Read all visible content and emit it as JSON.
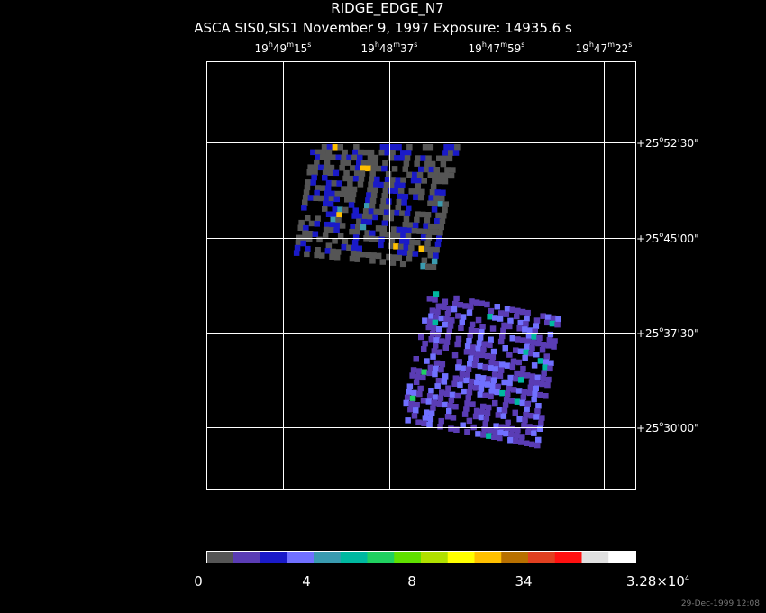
{
  "title": "RIDGE_EDGE_N7",
  "subtitle": "ASCA SIS0,SIS1 November 9, 1997 Exposure: 14935.6 s",
  "ra_labels": [
    [
      "19",
      "h",
      "49",
      "m",
      "15",
      "s"
    ],
    [
      "19",
      "h",
      "48",
      "m",
      "37",
      "s"
    ],
    [
      "19",
      "h",
      "47",
      "m",
      "59",
      "s"
    ],
    [
      "19",
      "h",
      "47",
      "m",
      "22",
      "s"
    ]
  ],
  "dec_labels": [
    [
      "+25",
      "o",
      "52'30\""
    ],
    [
      "+25",
      "o",
      "45'00\""
    ],
    [
      "+25",
      "o",
      "37'30\""
    ],
    [
      "+25",
      "o",
      "30'00\""
    ]
  ],
  "colorbar": {
    "colors": [
      "#555555",
      "#5a3cb4",
      "#1a1ac8",
      "#7070ff",
      "#3a9bb0",
      "#00b8a0",
      "#20d060",
      "#60e000",
      "#b0e000",
      "#ffff00",
      "#ffc000",
      "#b87000",
      "#e04020",
      "#ff1010",
      "#e0e0e0",
      "#ffffff"
    ],
    "labels": [
      [
        "0"
      ],
      [
        "4"
      ],
      [
        "8"
      ],
      [
        "34"
      ],
      [
        "3.28×10",
        "4"
      ]
    ]
  },
  "footer": "29-Dec-1999 12:08"
}
